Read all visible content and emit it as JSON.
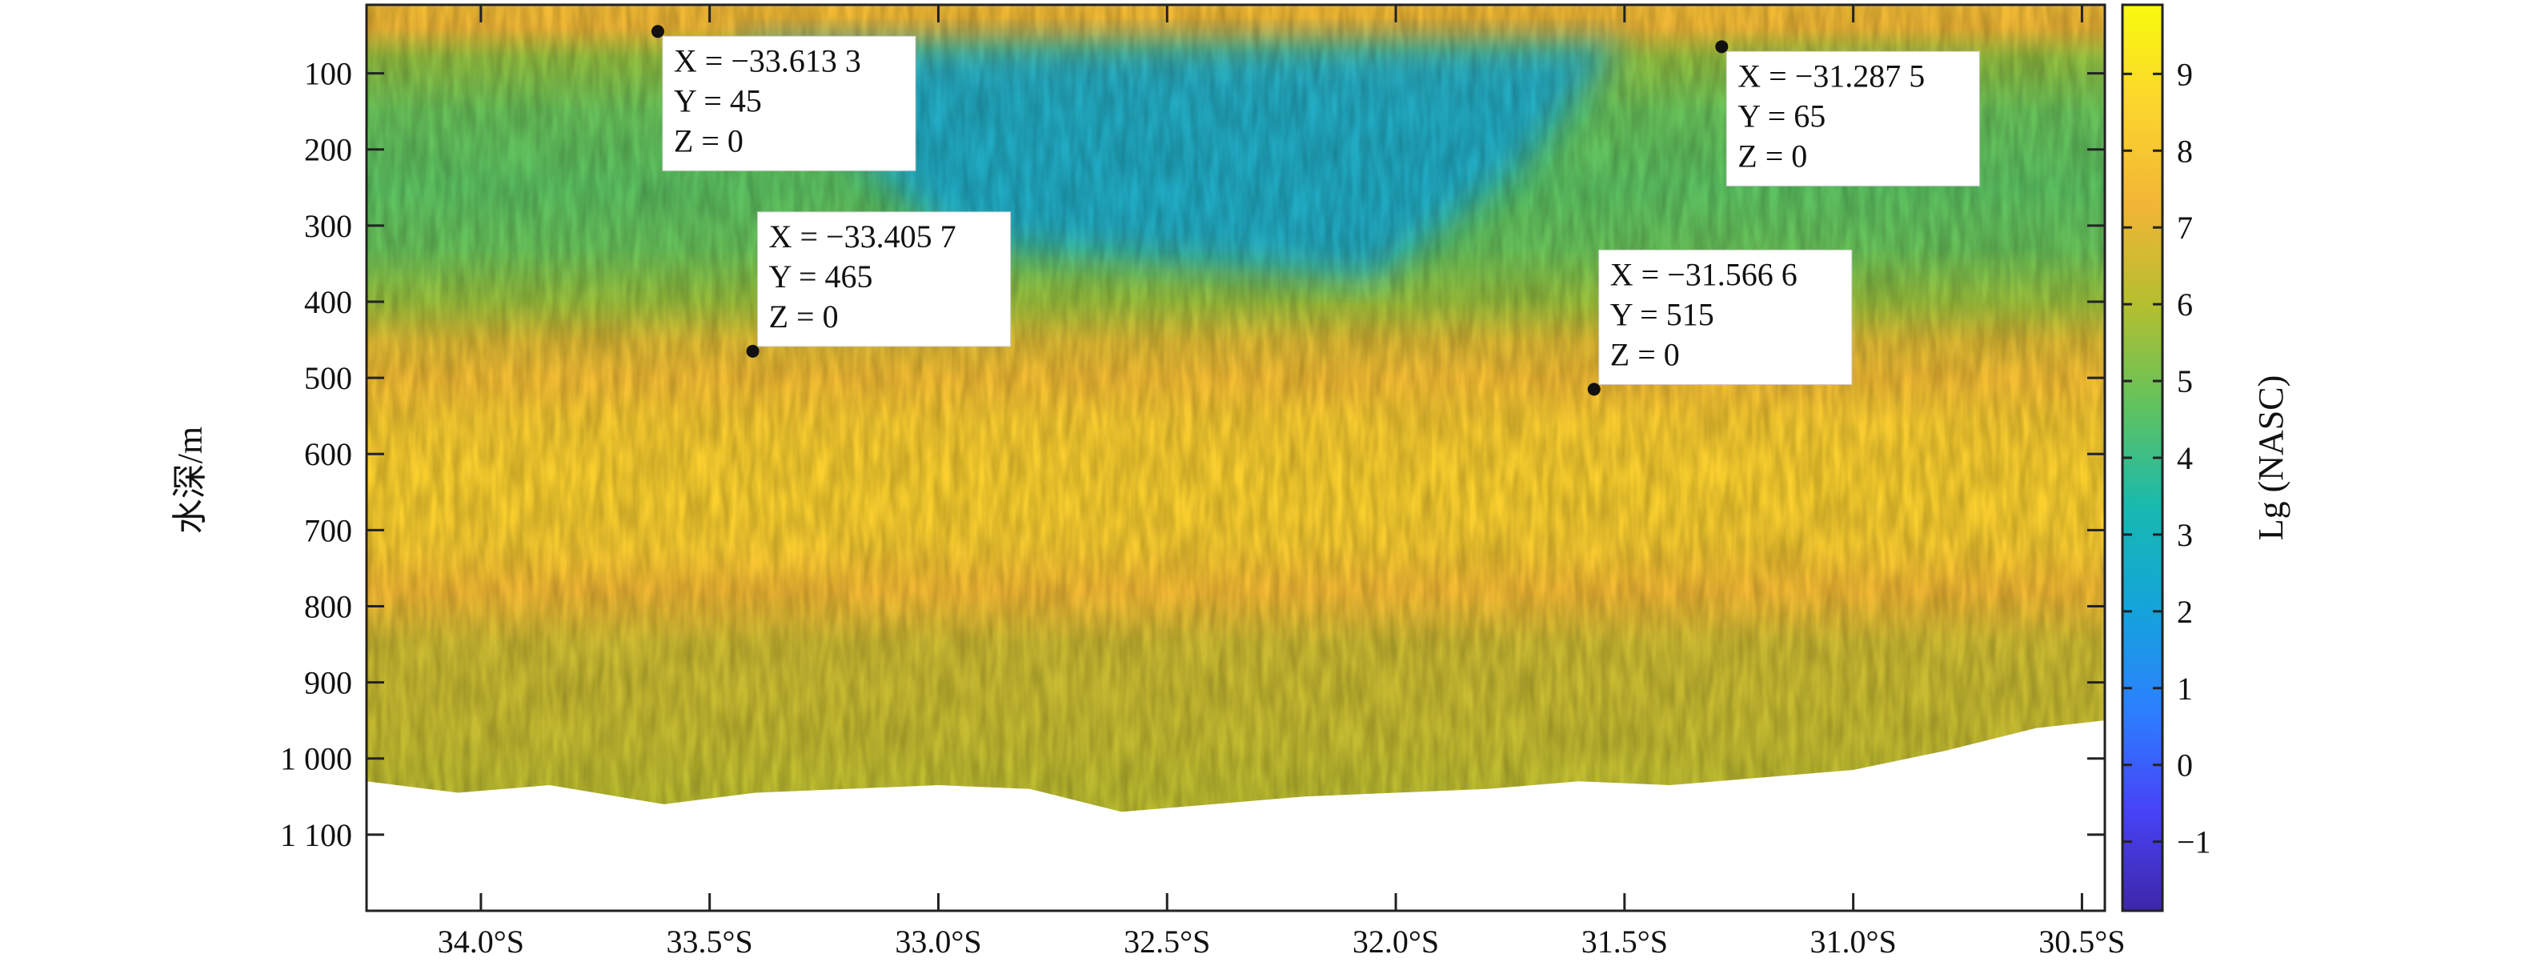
{
  "chart_data": {
    "type": "heatmap",
    "title": "",
    "xlabel": "",
    "ylabel": "水深/m",
    "colorbar_label": "Lg (NASC)",
    "xlim": [
      -34.25,
      -30.45
    ],
    "ylim": [
      1200,
      10
    ],
    "x_ticks": [
      {
        "value": -34.0,
        "label": "34.0°S"
      },
      {
        "value": -33.5,
        "label": "33.5°S"
      },
      {
        "value": -33.0,
        "label": "33.0°S"
      },
      {
        "value": -32.5,
        "label": "32.5°S"
      },
      {
        "value": -32.0,
        "label": "32.0°S"
      },
      {
        "value": -31.5,
        "label": "31.5°S"
      },
      {
        "value": -31.0,
        "label": "31.0°S"
      },
      {
        "value": -30.5,
        "label": "30.5°S"
      }
    ],
    "y_ticks": [
      {
        "value": 100,
        "label": "100"
      },
      {
        "value": 200,
        "label": "200"
      },
      {
        "value": 300,
        "label": "300"
      },
      {
        "value": 400,
        "label": "400"
      },
      {
        "value": 500,
        "label": "500"
      },
      {
        "value": 600,
        "label": "600"
      },
      {
        "value": 700,
        "label": "700"
      },
      {
        "value": 800,
        "label": "800"
      },
      {
        "value": 900,
        "label": "900"
      },
      {
        "value": 1000,
        "label": "1 000"
      },
      {
        "value": 1100,
        "label": "1 100"
      }
    ],
    "color_range": [
      -1.9,
      9.9
    ],
    "colorbar_ticks": [
      {
        "value": 9,
        "label": "9"
      },
      {
        "value": 8,
        "label": "8"
      },
      {
        "value": 7,
        "label": "7"
      },
      {
        "value": 6,
        "label": "6"
      },
      {
        "value": 5,
        "label": "5"
      },
      {
        "value": 4,
        "label": "4"
      },
      {
        "value": 3,
        "label": "3"
      },
      {
        "value": 2,
        "label": "2"
      },
      {
        "value": 1,
        "label": "1"
      },
      {
        "value": 0,
        "label": "0"
      },
      {
        "value": -1,
        "label": "−1"
      }
    ],
    "colormap": [
      "#3e26a8",
      "#4743f7",
      "#2c80fe",
      "#14a4da",
      "#17b9b0",
      "#5fc25f",
      "#b2bf2f",
      "#f2b536",
      "#fbd52d",
      "#f9fb0e"
    ],
    "grid": false,
    "layers": [
      {
        "depth": 10,
        "value": 7.6
      },
      {
        "depth": 40,
        "value": 7.2
      },
      {
        "depth": 80,
        "value": 5.5
      },
      {
        "depth": 150,
        "value": 4.8
      },
      {
        "depth": 250,
        "value": 4.6
      },
      {
        "depth": 330,
        "value": 4.8
      },
      {
        "depth": 400,
        "value": 5.6
      },
      {
        "depth": 450,
        "value": 6.8
      },
      {
        "depth": 500,
        "value": 7.6
      },
      {
        "depth": 560,
        "value": 8.2
      },
      {
        "depth": 650,
        "value": 8.4
      },
      {
        "depth": 720,
        "value": 8.2
      },
      {
        "depth": 780,
        "value": 7.5
      },
      {
        "depth": 850,
        "value": 6.5
      },
      {
        "depth": 950,
        "value": 6.4
      },
      {
        "depth": 1050,
        "value": 6.2
      }
    ],
    "shallow_low_region": {
      "lat_from": -33.45,
      "lat_to": -31.5,
      "depth_from": 60,
      "depth_to": 370,
      "value": 2.2
    },
    "bottom_profile": [
      {
        "lat": -34.25,
        "depth": 1030
      },
      {
        "lat": -34.05,
        "depth": 1045
      },
      {
        "lat": -33.85,
        "depth": 1035
      },
      {
        "lat": -33.6,
        "depth": 1060
      },
      {
        "lat": -33.4,
        "depth": 1045
      },
      {
        "lat": -33.2,
        "depth": 1040
      },
      {
        "lat": -33.0,
        "depth": 1035
      },
      {
        "lat": -32.8,
        "depth": 1040
      },
      {
        "lat": -32.6,
        "depth": 1070
      },
      {
        "lat": -32.4,
        "depth": 1060
      },
      {
        "lat": -32.2,
        "depth": 1050
      },
      {
        "lat": -32.0,
        "depth": 1045
      },
      {
        "lat": -31.8,
        "depth": 1040
      },
      {
        "lat": -31.6,
        "depth": 1030
      },
      {
        "lat": -31.4,
        "depth": 1035
      },
      {
        "lat": -31.2,
        "depth": 1025
      },
      {
        "lat": -31.0,
        "depth": 1015
      },
      {
        "lat": -30.8,
        "depth": 990
      },
      {
        "lat": -30.6,
        "depth": 960
      },
      {
        "lat": -30.45,
        "depth": 950
      }
    ],
    "annotations": [
      {
        "x": -33.6133,
        "y": 45,
        "z": 0,
        "lines": {
          "x": "X = −33.613 3",
          "y": "Y = 45",
          "z": "Z = 0"
        },
        "box_anchor": "below-right"
      },
      {
        "x": -33.4057,
        "y": 465,
        "z": 0,
        "lines": {
          "x": "X = −33.405 7",
          "y": "Y = 465",
          "z": "Z = 0"
        },
        "box_anchor": "above-right"
      },
      {
        "x": -31.2875,
        "y": 65,
        "z": 0,
        "lines": {
          "x": "X = −31.287 5",
          "y": "Y = 65",
          "z": "Z = 0"
        },
        "box_anchor": "below-right"
      },
      {
        "x": -31.5666,
        "y": 515,
        "z": 0,
        "lines": {
          "x": "X = −31.566 6",
          "y": "Y = 515",
          "z": "Z = 0"
        },
        "box_anchor": "above-right"
      }
    ]
  }
}
